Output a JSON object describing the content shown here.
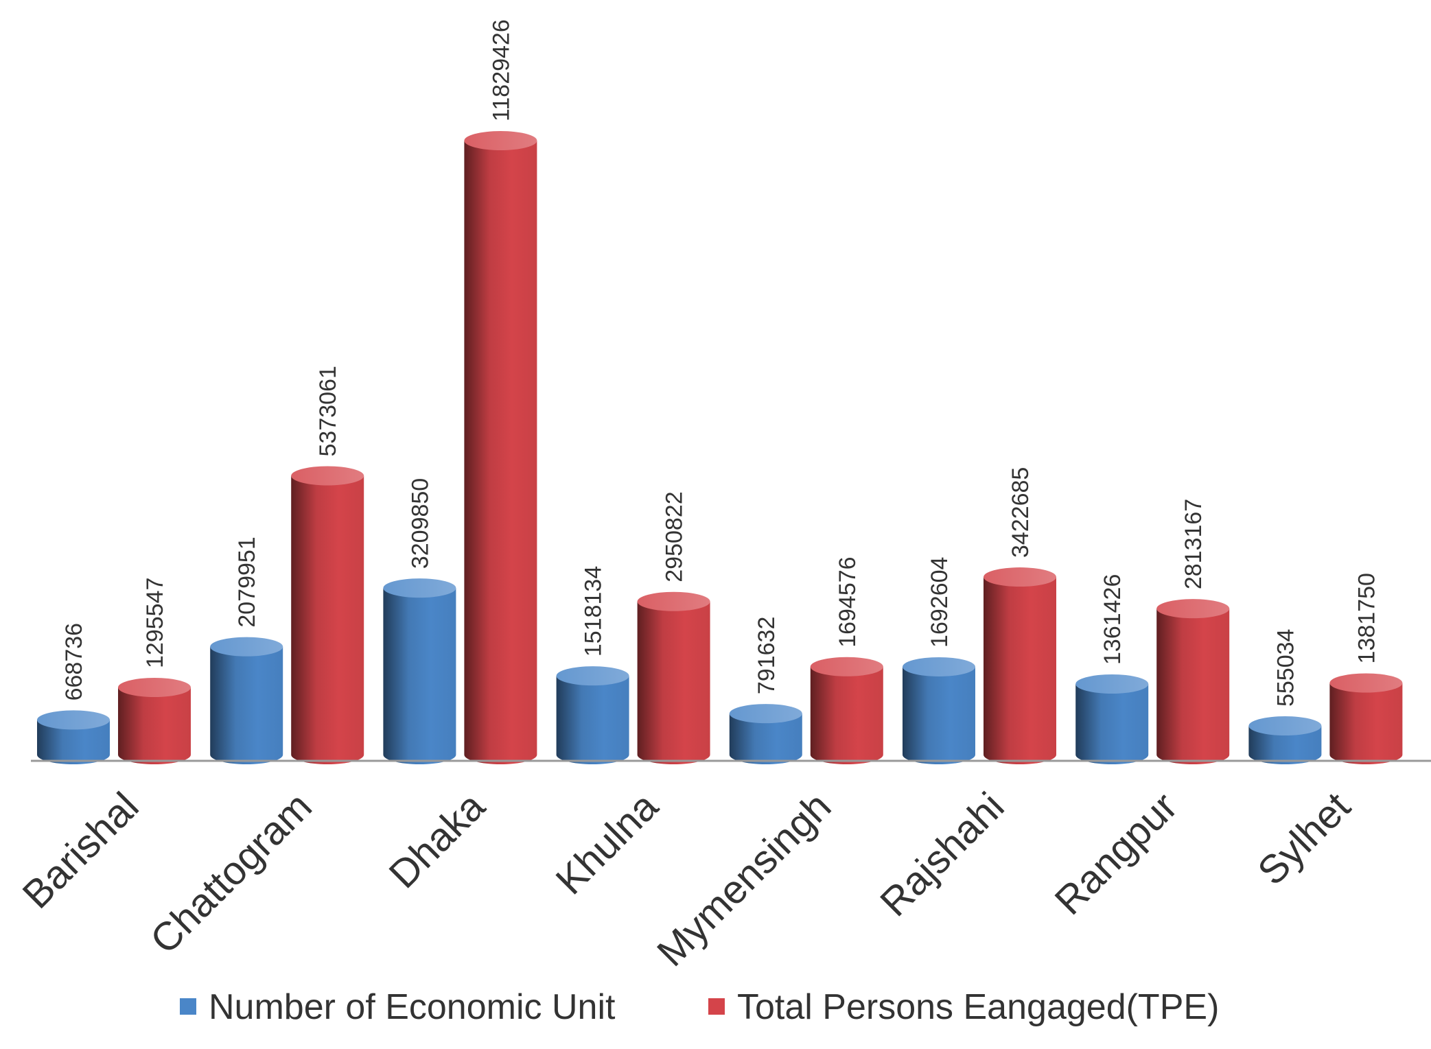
{
  "colors": {
    "blue": "#4a86c8",
    "red": "#d4444a",
    "axis": "#999999",
    "text": "#333333"
  },
  "chart_data": {
    "type": "bar",
    "style": "3d-cylinder",
    "title": "",
    "xlabel": "",
    "ylabel": "",
    "grid": false,
    "legend": "bottom",
    "ylim": [
      0,
      12000000
    ],
    "categories": [
      "Barishal",
      "Chattogram",
      "Dhaka",
      "Khulna",
      "Mymensingh",
      "Rajshahi",
      "Rangpur",
      "Sylhet"
    ],
    "series": [
      {
        "name": "Number of Economic Unit",
        "color": "#4a86c8",
        "values": [
          668736,
          2079951,
          3209850,
          1518134,
          791632,
          1692604,
          1361426,
          555034
        ]
      },
      {
        "name": "Total Persons Eangaged(TPE)",
        "color": "#d4444a",
        "values": [
          1295547,
          5373061,
          11829426,
          2950822,
          1694576,
          3422685,
          2813167,
          1381750
        ]
      }
    ]
  }
}
